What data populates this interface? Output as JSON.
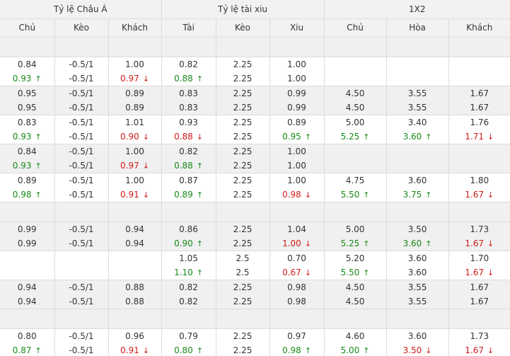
{
  "groups": [
    "Tỷ lệ Châu Á",
    "Tỷ lệ tài xiu",
    "1X2"
  ],
  "columns": [
    "Chủ",
    "Kèo",
    "Khách",
    "Tài",
    "Kèo",
    "Xiu",
    "Chủ",
    "Hòa",
    "Khách"
  ],
  "rows": [
    {
      "type": "blank"
    },
    {
      "type": "data",
      "cells": [
        [
          {
            "t": "0.84"
          },
          {
            "t": "0.93",
            "d": "up"
          }
        ],
        [
          {
            "t": "-0.5/1"
          },
          {
            "t": "-0.5/1"
          }
        ],
        [
          {
            "t": "1.00"
          },
          {
            "t": "0.97",
            "d": "down"
          }
        ],
        [
          {
            "t": "0.82"
          },
          {
            "t": "0.88",
            "d": "up"
          }
        ],
        [
          {
            "t": "2.25"
          },
          {
            "t": "2.25"
          }
        ],
        [
          {
            "t": "1.00"
          },
          {
            "t": "1.00"
          }
        ],
        [],
        [],
        []
      ]
    },
    {
      "type": "data",
      "cells": [
        [
          {
            "t": "0.95"
          },
          {
            "t": "0.95"
          }
        ],
        [
          {
            "t": "-0.5/1"
          },
          {
            "t": "-0.5/1"
          }
        ],
        [
          {
            "t": "0.89"
          },
          {
            "t": "0.89"
          }
        ],
        [
          {
            "t": "0.83"
          },
          {
            "t": "0.83"
          }
        ],
        [
          {
            "t": "2.25"
          },
          {
            "t": "2.25"
          }
        ],
        [
          {
            "t": "0.99"
          },
          {
            "t": "0.99"
          }
        ],
        [
          {
            "t": "4.50"
          },
          {
            "t": "4.50"
          }
        ],
        [
          {
            "t": "3.55"
          },
          {
            "t": "3.55"
          }
        ],
        [
          {
            "t": "1.67"
          },
          {
            "t": "1.67"
          }
        ]
      ]
    },
    {
      "type": "data",
      "cells": [
        [
          {
            "t": "0.83"
          },
          {
            "t": "0.93",
            "d": "up"
          }
        ],
        [
          {
            "t": "-0.5/1"
          },
          {
            "t": "-0.5/1"
          }
        ],
        [
          {
            "t": "1.01"
          },
          {
            "t": "0.90",
            "d": "down"
          }
        ],
        [
          {
            "t": "0.93"
          },
          {
            "t": "0.88",
            "d": "down"
          }
        ],
        [
          {
            "t": "2.25"
          },
          {
            "t": "2.25"
          }
        ],
        [
          {
            "t": "0.89"
          },
          {
            "t": "0.95",
            "d": "up"
          }
        ],
        [
          {
            "t": "5.00"
          },
          {
            "t": "5.25",
            "d": "up"
          }
        ],
        [
          {
            "t": "3.40"
          },
          {
            "t": "3.60",
            "d": "up"
          }
        ],
        [
          {
            "t": "1.76"
          },
          {
            "t": "1.71",
            "d": "down"
          }
        ]
      ]
    },
    {
      "type": "data",
      "cells": [
        [
          {
            "t": "0.84"
          },
          {
            "t": "0.93",
            "d": "up"
          }
        ],
        [
          {
            "t": "-0.5/1"
          },
          {
            "t": "-0.5/1"
          }
        ],
        [
          {
            "t": "1.00"
          },
          {
            "t": "0.97",
            "d": "down"
          }
        ],
        [
          {
            "t": "0.82"
          },
          {
            "t": "0.88",
            "d": "up"
          }
        ],
        [
          {
            "t": "2.25"
          },
          {
            "t": "2.25"
          }
        ],
        [
          {
            "t": "1.00"
          },
          {
            "t": "1.00"
          }
        ],
        [],
        [],
        []
      ]
    },
    {
      "type": "data",
      "cells": [
        [
          {
            "t": "0.89"
          },
          {
            "t": "0.98",
            "d": "up"
          }
        ],
        [
          {
            "t": "-0.5/1"
          },
          {
            "t": "-0.5/1"
          }
        ],
        [
          {
            "t": "1.00"
          },
          {
            "t": "0.91",
            "d": "down"
          }
        ],
        [
          {
            "t": "0.87"
          },
          {
            "t": "0.89",
            "d": "up"
          }
        ],
        [
          {
            "t": "2.25"
          },
          {
            "t": "2.25"
          }
        ],
        [
          {
            "t": "1.00"
          },
          {
            "t": "0.98",
            "d": "down"
          }
        ],
        [
          {
            "t": "4.75"
          },
          {
            "t": "5.50",
            "d": "up"
          }
        ],
        [
          {
            "t": "3.60"
          },
          {
            "t": "3.75",
            "d": "up"
          }
        ],
        [
          {
            "t": "1.80"
          },
          {
            "t": "1.67",
            "d": "down"
          }
        ]
      ]
    },
    {
      "type": "blank"
    },
    {
      "type": "data",
      "cells": [
        [
          {
            "t": "0.99"
          },
          {
            "t": "0.99"
          }
        ],
        [
          {
            "t": "-0.5/1"
          },
          {
            "t": "-0.5/1"
          }
        ],
        [
          {
            "t": "0.94"
          },
          {
            "t": "0.94"
          }
        ],
        [
          {
            "t": "0.86"
          },
          {
            "t": "0.90",
            "d": "up"
          }
        ],
        [
          {
            "t": "2.25"
          },
          {
            "t": "2.25"
          }
        ],
        [
          {
            "t": "1.04"
          },
          {
            "t": "1.00",
            "d": "down"
          }
        ],
        [
          {
            "t": "5.00"
          },
          {
            "t": "5.25",
            "d": "up"
          }
        ],
        [
          {
            "t": "3.50"
          },
          {
            "t": "3.60",
            "d": "up"
          }
        ],
        [
          {
            "t": "1.73"
          },
          {
            "t": "1.67",
            "d": "down"
          }
        ]
      ]
    },
    {
      "type": "data",
      "cells": [
        [],
        [],
        [],
        [
          {
            "t": "1.05"
          },
          {
            "t": "1.10",
            "d": "up"
          }
        ],
        [
          {
            "t": "2.5"
          },
          {
            "t": "2.5"
          }
        ],
        [
          {
            "t": "0.70"
          },
          {
            "t": "0.67",
            "d": "down"
          }
        ],
        [
          {
            "t": "5.20"
          },
          {
            "t": "5.50",
            "d": "up"
          }
        ],
        [
          {
            "t": "3.60"
          },
          {
            "t": "3.60"
          }
        ],
        [
          {
            "t": "1.70"
          },
          {
            "t": "1.67",
            "d": "down"
          }
        ]
      ]
    },
    {
      "type": "data",
      "cells": [
        [
          {
            "t": "0.94"
          },
          {
            "t": "0.94"
          }
        ],
        [
          {
            "t": "-0.5/1"
          },
          {
            "t": "-0.5/1"
          }
        ],
        [
          {
            "t": "0.88"
          },
          {
            "t": "0.88"
          }
        ],
        [
          {
            "t": "0.82"
          },
          {
            "t": "0.82"
          }
        ],
        [
          {
            "t": "2.25"
          },
          {
            "t": "2.25"
          }
        ],
        [
          {
            "t": "0.98"
          },
          {
            "t": "0.98"
          }
        ],
        [
          {
            "t": "4.50"
          },
          {
            "t": "4.50"
          }
        ],
        [
          {
            "t": "3.55"
          },
          {
            "t": "3.55"
          }
        ],
        [
          {
            "t": "1.67"
          },
          {
            "t": "1.67"
          }
        ]
      ]
    },
    {
      "type": "blank"
    },
    {
      "type": "data",
      "cells": [
        [
          {
            "t": "0.80"
          },
          {
            "t": "0.87",
            "d": "up"
          }
        ],
        [
          {
            "t": "-0.5/1"
          },
          {
            "t": "-0.5/1"
          }
        ],
        [
          {
            "t": "0.96"
          },
          {
            "t": "0.91",
            "d": "down"
          }
        ],
        [
          {
            "t": "0.79"
          },
          {
            "t": "0.80",
            "d": "up"
          }
        ],
        [
          {
            "t": "2.25"
          },
          {
            "t": "2.25"
          }
        ],
        [
          {
            "t": "0.97"
          },
          {
            "t": "0.98",
            "d": "up"
          }
        ],
        [
          {
            "t": "4.60"
          },
          {
            "t": "5.00",
            "d": "up"
          }
        ],
        [
          {
            "t": "3.60"
          },
          {
            "t": "3.50",
            "d": "down"
          }
        ],
        [
          {
            "t": "1.73"
          },
          {
            "t": "1.67",
            "d": "down"
          }
        ]
      ]
    }
  ],
  "icons": {
    "up": "↑",
    "down": "↓"
  },
  "colors": {
    "up": "#1a8a1a",
    "down": "#d11a1a",
    "header_bg": "#f2f2f2",
    "alt_row_bg": "#f0f0f0"
  }
}
